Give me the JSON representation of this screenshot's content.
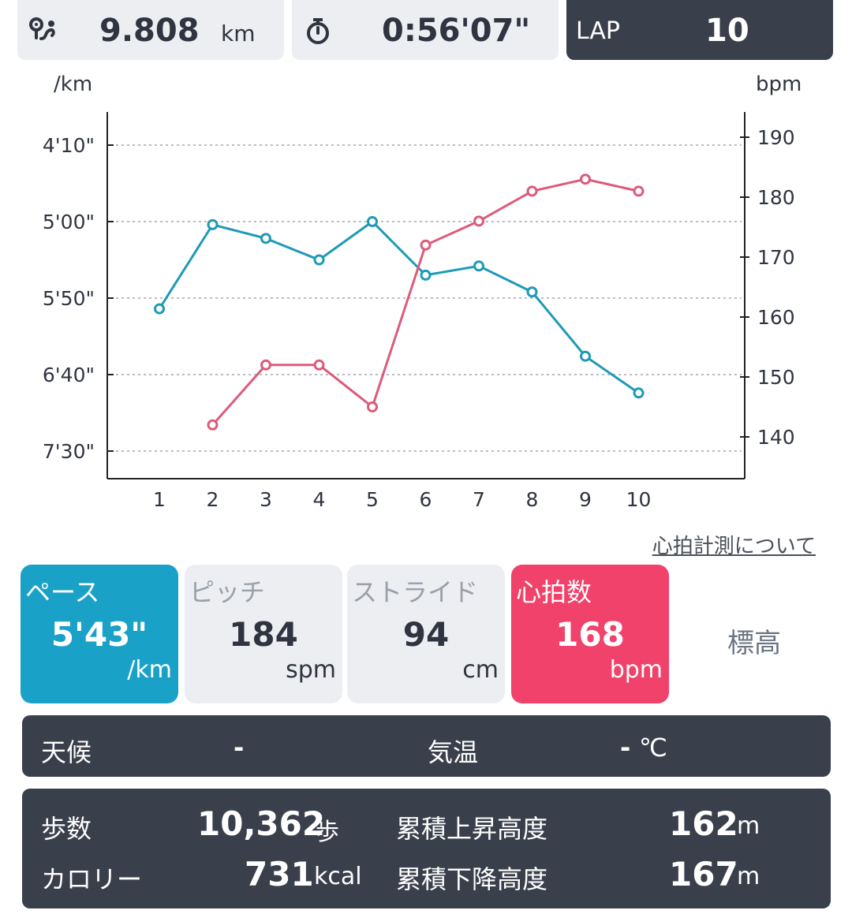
{
  "header": {
    "distance_icon": "route-icon",
    "distance_value": "9.808",
    "distance_unit": "km",
    "time_icon": "stopwatch-icon",
    "time_value": "0:56'07\"",
    "lap_label": "LAP",
    "lap_value": "10"
  },
  "chart_data": {
    "type": "line",
    "left_axis_label": "/km",
    "right_axis_label": "bpm",
    "left_ticks": [
      "4'10\"",
      "5'00\"",
      "5'50\"",
      "6'40\"",
      "7'30\""
    ],
    "right_ticks": [
      "190",
      "180",
      "170",
      "160",
      "150",
      "140"
    ],
    "categories": [
      1,
      2,
      3,
      4,
      5,
      6,
      7,
      8,
      9,
      10
    ],
    "pace_ylim_seconds_top_to_bottom": [
      250,
      450
    ],
    "hr_ylim": [
      133,
      195
    ],
    "series": [
      {
        "key": "pace",
        "color": "#1e9ab7",
        "values_seconds": [
          357,
          302,
          311,
          325,
          300,
          335,
          329,
          346,
          388,
          412
        ]
      },
      {
        "key": "heart_rate",
        "color": "#dc5b7b",
        "values": [
          null,
          142,
          152,
          152,
          145,
          172,
          176,
          181,
          183,
          181
        ]
      }
    ],
    "grid": true
  },
  "link_text": "心拍計測について",
  "metrics": [
    {
      "label": "ペース",
      "value": "5'43\"",
      "unit": "/km"
    },
    {
      "label": "ピッチ",
      "value": "184",
      "unit": "spm"
    },
    {
      "label": "ストライド",
      "value": "94",
      "unit": "cm"
    },
    {
      "label": "心拍数",
      "value": "168",
      "unit": "bpm"
    },
    {
      "label": "標高"
    }
  ],
  "weather": {
    "label": "天候",
    "value": "-",
    "temp_label": "気温",
    "temp_value": "-",
    "temp_unit": "℃"
  },
  "stats": {
    "steps_label": "歩数",
    "steps_value": "10,362",
    "steps_unit": "歩",
    "calories_label": "カロリー",
    "calories_value": "731",
    "calories_unit": "kcal",
    "ascent_label": "累積上昇高度",
    "ascent_value": "162",
    "ascent_unit": "m",
    "descent_label": "累積下降高度",
    "descent_value": "167",
    "descent_unit": "m"
  }
}
